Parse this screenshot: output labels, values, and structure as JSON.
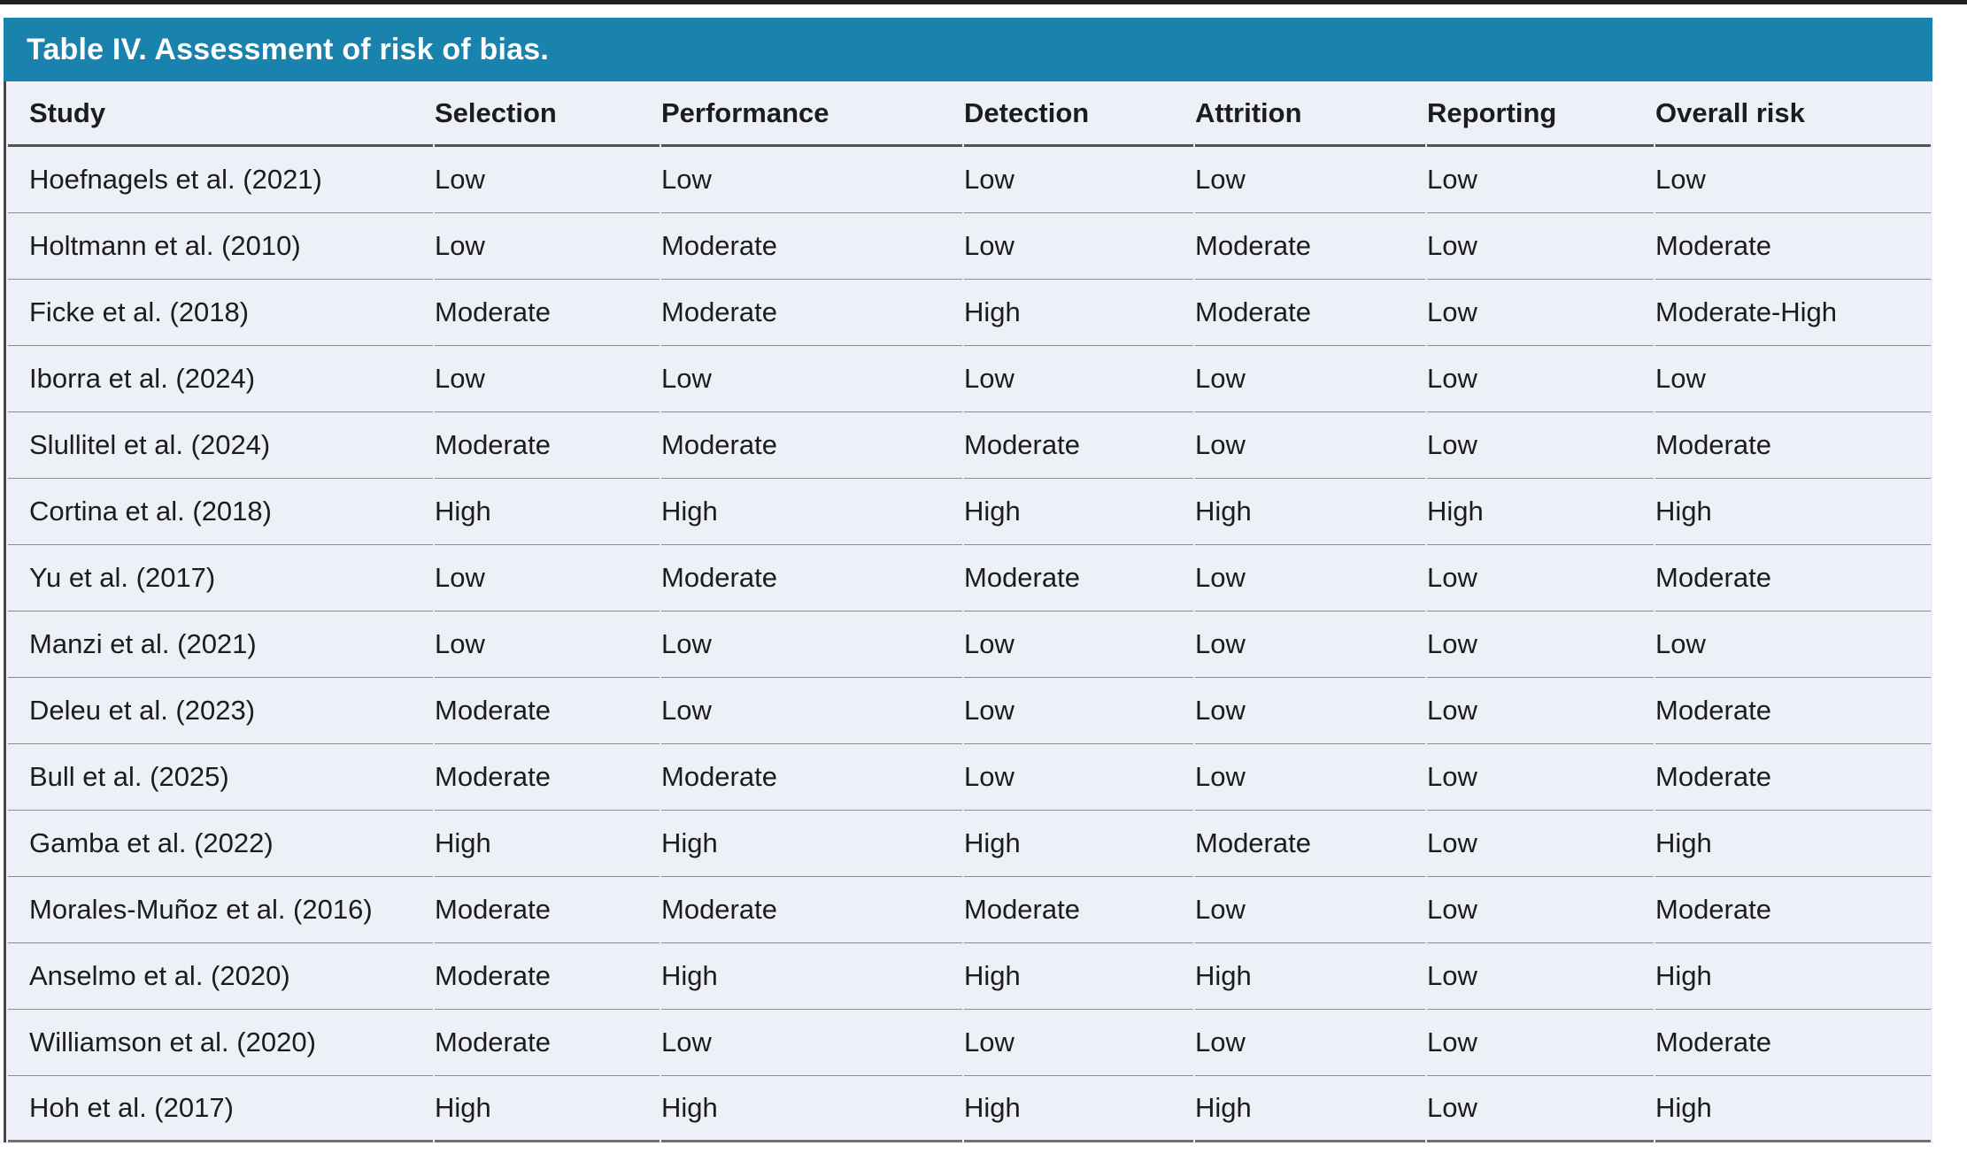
{
  "page": {
    "top_rule_color": "#202124",
    "background": "#ffffff"
  },
  "colors": {
    "title_bar_bg": "#1982ad",
    "title_text": "#ffffff",
    "table_body_bg": "#edf0f7",
    "table_text": "#1c1c1e",
    "header_rule": "#515254",
    "row_rule": "#8a8c8f",
    "bottom_rule": "#6f7174"
  },
  "table": {
    "title": "Table IV. Assessment of risk of bias.",
    "columns": [
      "Study",
      "Selection",
      "Performance",
      "Detection",
      "Attrition",
      "Reporting",
      "Overall risk"
    ],
    "rows": [
      [
        "Hoefnagels et al. (2021)",
        "Low",
        "Low",
        "Low",
        "Low",
        "Low",
        "Low"
      ],
      [
        "Holtmann et al. (2010)",
        "Low",
        "Moderate",
        "Low",
        "Moderate",
        "Low",
        "Moderate"
      ],
      [
        "Ficke et al. (2018)",
        "Moderate",
        "Moderate",
        "High",
        "Moderate",
        "Low",
        "Moderate-High"
      ],
      [
        "Iborra et al. (2024)",
        "Low",
        "Low",
        "Low",
        "Low",
        "Low",
        "Low"
      ],
      [
        "Slullitel et al. (2024)",
        "Moderate",
        "Moderate",
        "Moderate",
        "Low",
        "Low",
        "Moderate"
      ],
      [
        "Cortina et al. (2018)",
        "High",
        "High",
        "High",
        "High",
        "High",
        "High"
      ],
      [
        "Yu et al. (2017)",
        "Low",
        "Moderate",
        "Moderate",
        "Low",
        "Low",
        "Moderate"
      ],
      [
        "Manzi et al. (2021)",
        "Low",
        "Low",
        "Low",
        "Low",
        "Low",
        "Low"
      ],
      [
        "Deleu et al. (2023)",
        "Moderate",
        "Low",
        "Low",
        "Low",
        "Low",
        "Moderate"
      ],
      [
        "Bull et al. (2025)",
        "Moderate",
        "Moderate",
        "Low",
        "Low",
        "Low",
        "Moderate"
      ],
      [
        "Gamba et al. (2022)",
        "High",
        "High",
        "High",
        "Moderate",
        "Low",
        "High"
      ],
      [
        "Morales-Muñoz et al. (2016)",
        "Moderate",
        "Moderate",
        "Moderate",
        "Low",
        "Low",
        "Moderate"
      ],
      [
        "Anselmo et al. (2020)",
        "Moderate",
        "High",
        "High",
        "High",
        "Low",
        "High"
      ],
      [
        "Williamson et al. (2020)",
        "Moderate",
        "Low",
        "Low",
        "Low",
        "Low",
        "Moderate"
      ],
      [
        "Hoh et al. (2017)",
        "High",
        "High",
        "High",
        "High",
        "Low",
        "High"
      ]
    ]
  }
}
